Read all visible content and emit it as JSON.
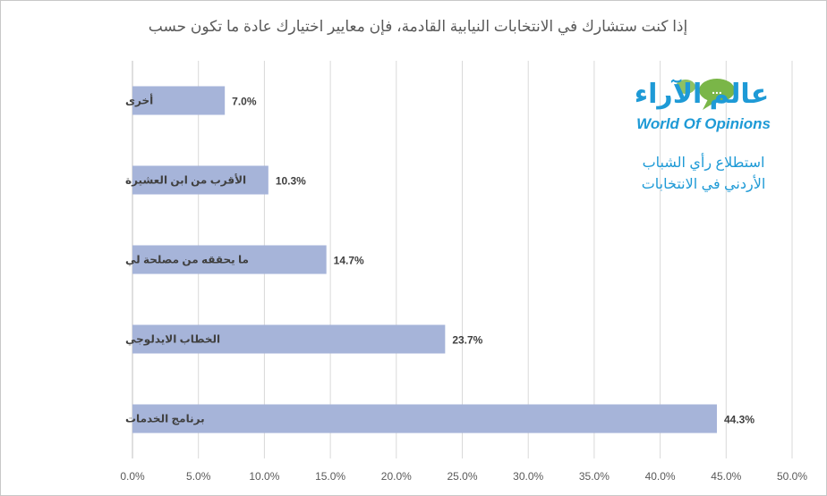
{
  "chart_data": {
    "type": "bar",
    "orientation": "horizontal",
    "title": "إذا كنت ستشارك في الانتخابات النيابية القادمة، فإن معايير اختيارك عادة ما تكون حسب",
    "categories": [
      "أخرى",
      "الأقرب من ابن العشيرة",
      "ما يحققه من مصلحة لي",
      "الخطاب الايدلوجي",
      "برنامج الخدمات"
    ],
    "values": [
      7.0,
      10.3,
      14.7,
      23.7,
      44.3
    ],
    "data_labels": [
      "7.0%",
      "10.3%",
      "14.7%",
      "23.7%",
      "44.3%"
    ],
    "xlim": [
      0,
      50
    ],
    "x_ticks": [
      0,
      5,
      10,
      15,
      20,
      25,
      30,
      35,
      40,
      45,
      50
    ],
    "x_tick_labels": [
      "0.0%",
      "5.0%",
      "10.0%",
      "15.0%",
      "20.0%",
      "25.0%",
      "30.0%",
      "35.0%",
      "40.0%",
      "45.0%",
      "50.0%"
    ],
    "xlabel": "",
    "ylabel": "",
    "grid": "vertical",
    "legend": "none",
    "bar_color": "#a6b4d9"
  },
  "logo": {
    "arabic": "عالم الآراء",
    "english": "World Of Opinions",
    "bubble_text": "...",
    "colors": {
      "text": "#1e9ad6",
      "bubble": "#7ab648"
    }
  },
  "subtitle": {
    "line1": "استطلاع رأي الشباب",
    "line2": "الأردني في الانتخابات"
  }
}
